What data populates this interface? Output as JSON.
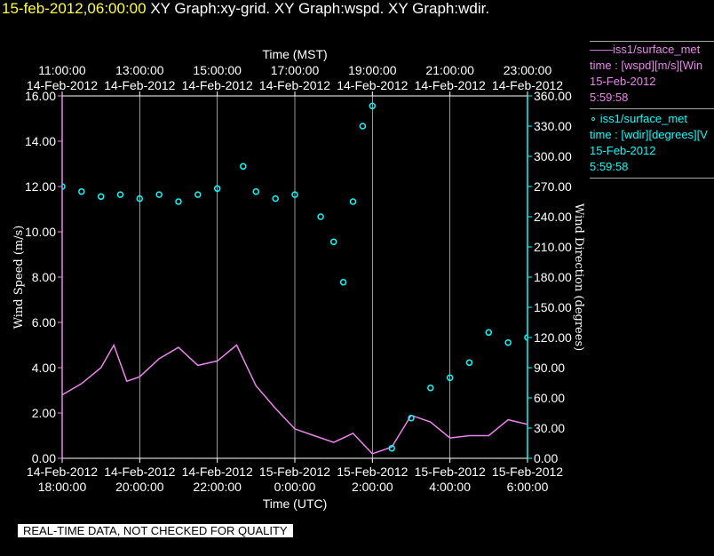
{
  "header": {
    "timestamp": "15-feb-2012,06:00:00",
    "graphs": "XY Graph:xy-grid.  XY Graph:wspd.  XY Graph:wdir."
  },
  "legend": [
    {
      "line1": "——iss1/surface_met",
      "line2": "time : [wspd][m/s][Win",
      "line3": "15-Feb-2012",
      "line4": "5:59:58",
      "color": "#ee82ee"
    },
    {
      "line1": "∘ iss1/surface_met",
      "line2": "time : [wdir][degrees][V",
      "line3": "15-Feb-2012",
      "line4": "5:59:58",
      "color": "#00ffff"
    }
  ],
  "disclaimer": "REAL-TIME DATA, NOT CHECKED FOR QUALITY",
  "colors": {
    "wspd": "#ee82ee",
    "wdir": "#00ffff",
    "axes": "#ffffff",
    "grid": "#ffffff"
  },
  "chart_data": {
    "type": "line",
    "top_axis_title": "Time (MST)",
    "bottom_axis_title": "Time (UTC)",
    "ylabel_left": "Wind Speed (m/s)",
    "ylabel_right": "Wind Direction (degrees)",
    "xlim_hours_utc": [
      0,
      12.0
    ],
    "ylim_left": [
      0,
      16
    ],
    "ylim_right": [
      0,
      360
    ],
    "grid": "vertical",
    "bottom_ticks": [
      {
        "date": "14-Feb-2012",
        "time": "18:00:00"
      },
      {
        "date": "14-Feb-2012",
        "time": "20:00:00"
      },
      {
        "date": "14-Feb-2012",
        "time": "22:00:00"
      },
      {
        "date": "15-Feb-2012",
        "time": "0:00:00"
      },
      {
        "date": "15-Feb-2012",
        "time": "2:00:00"
      },
      {
        "date": "15-Feb-2012",
        "time": "4:00:00"
      },
      {
        "date": "15-Feb-2012",
        "time": "6:00:00"
      }
    ],
    "top_ticks": [
      {
        "date": "14-Feb-2012",
        "time": "11:00:00"
      },
      {
        "date": "14-Feb-2012",
        "time": "13:00:00"
      },
      {
        "date": "14-Feb-2012",
        "time": "15:00:00"
      },
      {
        "date": "14-Feb-2012",
        "time": "17:00:00"
      },
      {
        "date": "14-Feb-2012",
        "time": "19:00:00"
      },
      {
        "date": "14-Feb-2012",
        "time": "21:00:00"
      },
      {
        "date": "14-Feb-2012",
        "time": "23:00:00"
      }
    ],
    "left_ticks": [
      "0.00",
      "2.00",
      "4.00",
      "6.00",
      "8.00",
      "10.00",
      "12.00",
      "14.00",
      "16.00"
    ],
    "right_ticks": [
      "0.00",
      "30.00",
      "60.00",
      "90.00",
      "120.00",
      "150.00",
      "180.00",
      "210.00",
      "240.00",
      "270.00",
      "300.00",
      "330.00",
      "360.00"
    ],
    "series": [
      {
        "name": "iss1/surface_met wspd",
        "axis": "left",
        "x": [
          "14-Feb-2012 18:00",
          "14-Feb-2012 18:30",
          "14-Feb-2012 19:00",
          "14-Feb-2012 19:20",
          "14-Feb-2012 19:40",
          "14-Feb-2012 20:00",
          "14-Feb-2012 20:30",
          "14-Feb-2012 21:00",
          "14-Feb-2012 21:30",
          "14-Feb-2012 22:00",
          "14-Feb-2012 22:30",
          "14-Feb-2012 23:00",
          "14-Feb-2012 23:30",
          "15-Feb-2012 00:00",
          "15-Feb-2012 00:30",
          "15-Feb-2012 01:00",
          "15-Feb-2012 01:30",
          "15-Feb-2012 02:00",
          "15-Feb-2012 02:30",
          "15-Feb-2012 03:00",
          "15-Feb-2012 03:30",
          "15-Feb-2012 04:00",
          "15-Feb-2012 04:30",
          "15-Feb-2012 05:00",
          "15-Feb-2012 05:30",
          "15-Feb-2012 06:00"
        ],
        "y": [
          2.8,
          3.3,
          4.0,
          5.0,
          3.4,
          3.6,
          4.4,
          4.9,
          4.1,
          4.3,
          5.0,
          3.2,
          2.2,
          1.3,
          1.0,
          0.7,
          1.1,
          0.2,
          0.5,
          1.9,
          1.6,
          0.9,
          1.0,
          1.0,
          1.7,
          1.5
        ]
      },
      {
        "name": "iss1/surface_met wdir",
        "axis": "right",
        "x": [
          "14-Feb-2012 18:00",
          "14-Feb-2012 18:30",
          "14-Feb-2012 19:00",
          "14-Feb-2012 19:30",
          "14-Feb-2012 20:00",
          "14-Feb-2012 20:30",
          "14-Feb-2012 21:00",
          "14-Feb-2012 21:30",
          "14-Feb-2012 22:00",
          "14-Feb-2012 22:40",
          "14-Feb-2012 23:00",
          "14-Feb-2012 23:30",
          "15-Feb-2012 00:00",
          "15-Feb-2012 00:40",
          "15-Feb-2012 01:00",
          "15-Feb-2012 01:15",
          "15-Feb-2012 01:30",
          "15-Feb-2012 01:45",
          "15-Feb-2012 02:00",
          "15-Feb-2012 02:30",
          "15-Feb-2012 03:00",
          "15-Feb-2012 03:30",
          "15-Feb-2012 04:00",
          "15-Feb-2012 04:30",
          "15-Feb-2012 05:00",
          "15-Feb-2012 05:30",
          "15-Feb-2012 06:00"
        ],
        "y": [
          270,
          265,
          260,
          262,
          258,
          262,
          255,
          262,
          268,
          290,
          265,
          258,
          262,
          240,
          215,
          175,
          255,
          330,
          350,
          10,
          40,
          70,
          80,
          95,
          125,
          115,
          120
        ]
      }
    ]
  }
}
